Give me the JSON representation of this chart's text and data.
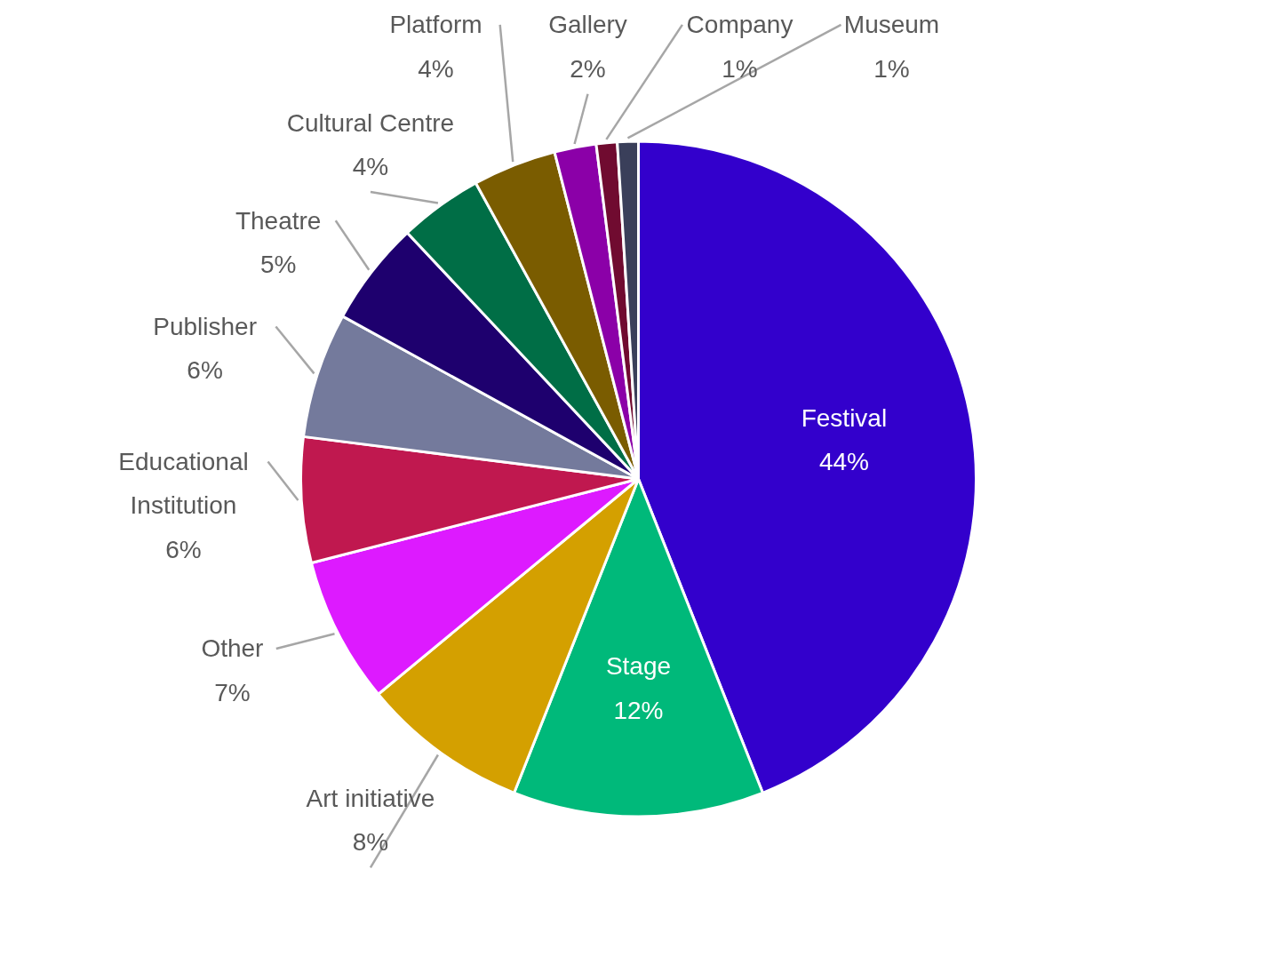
{
  "chart_data": {
    "type": "pie",
    "categories": [
      "Festival",
      "Stage",
      "Art initiative",
      "Other",
      "Educational Institution",
      "Publisher",
      "Theatre",
      "Cultural Centre",
      "Platform",
      "Gallery",
      "Company",
      "Museum"
    ],
    "values": [
      44,
      12,
      8,
      7,
      6,
      6,
      5,
      4,
      4,
      2,
      1,
      1
    ],
    "value_labels": [
      "44%",
      "12%",
      "8%",
      "7%",
      "6%",
      "6%",
      "5%",
      "4%",
      "4%",
      "2%",
      "1%",
      "1%"
    ],
    "colors": [
      "#3300cc",
      "#00b97a",
      "#d4a000",
      "#dd1aff",
      "#c0184f",
      "#747a9c",
      "#1e006e",
      "#006e46",
      "#7a5c00",
      "#8b00a8",
      "#700b30",
      "#3a3f5a"
    ],
    "legend": false
  }
}
